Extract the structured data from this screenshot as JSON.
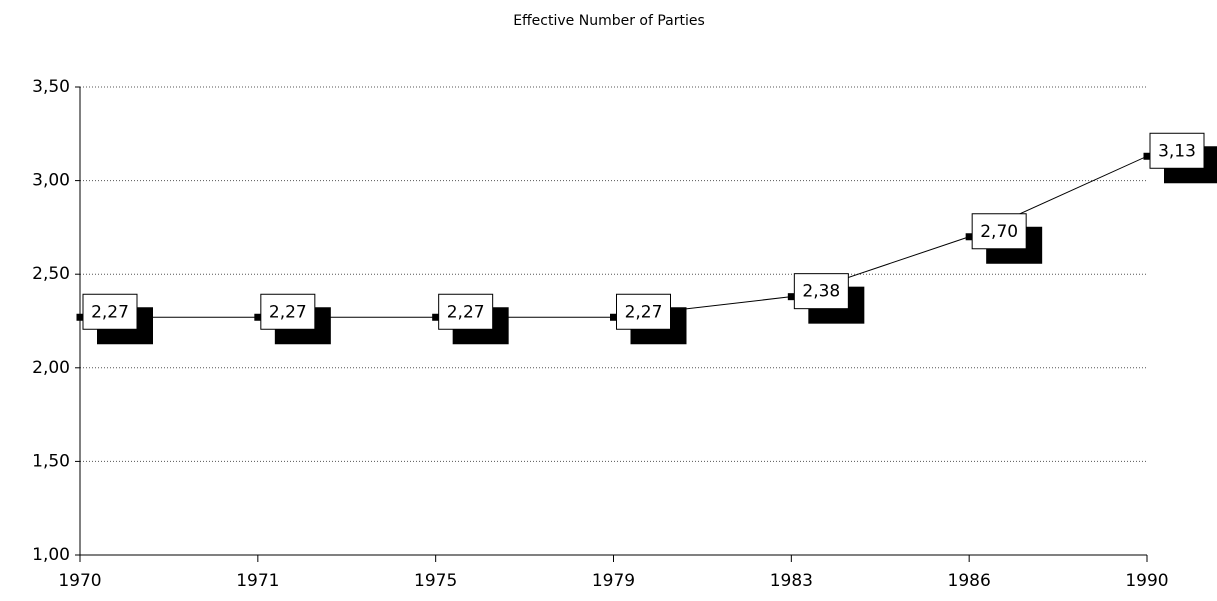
{
  "chart_data": {
    "type": "line",
    "title": "Effective Number of Parties",
    "categories": [
      "1970",
      "1971",
      "1975",
      "1979",
      "1983",
      "1986",
      "1990"
    ],
    "values": [
      2.27,
      2.27,
      2.27,
      2.27,
      2.38,
      2.7,
      3.13
    ],
    "value_labels": [
      "2,27",
      "2,27",
      "2,27",
      "2,27",
      "2,38",
      "2,70",
      "3,13"
    ],
    "color": "#000000",
    "ylim": [
      1.0,
      3.5
    ],
    "yticks": [
      {
        "value": 1.0,
        "label": "1,00"
      },
      {
        "value": 1.5,
        "label": "1,50"
      },
      {
        "value": 2.0,
        "label": "2,00"
      },
      {
        "value": 2.5,
        "label": "2,50"
      },
      {
        "value": 3.0,
        "label": "3,00"
      },
      {
        "value": 3.5,
        "label": "3,50"
      }
    ],
    "grid": true
  }
}
